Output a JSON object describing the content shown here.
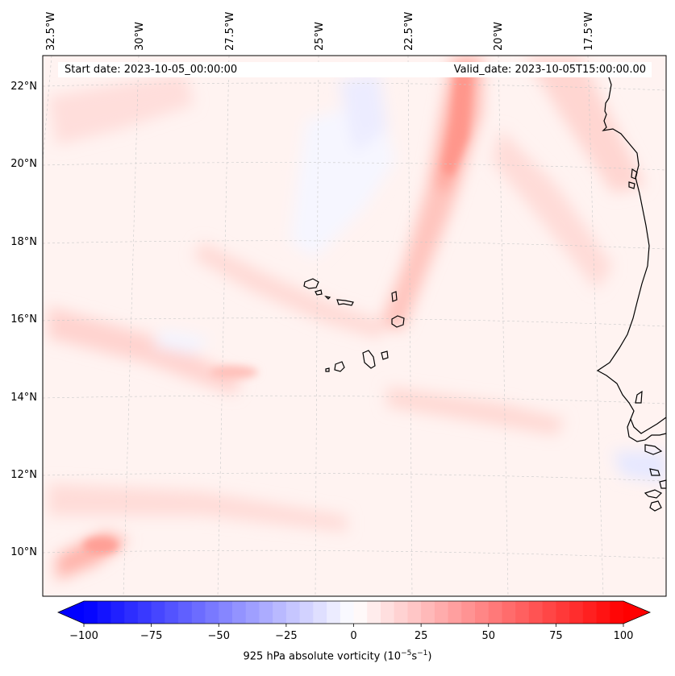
{
  "map": {
    "start_label": "Start date: 2023-10-05_00:00:00",
    "valid_label": "Valid_date: 2023-10-05T15:00:00.00",
    "lon_labels": [
      "32.5°W",
      "30°W",
      "27.5°W",
      "25°W",
      "22.5°W",
      "20°W",
      "17.5°W"
    ],
    "lat_labels": [
      "22°N",
      "20°N",
      "18°N",
      "16°N",
      "14°N",
      "12°N",
      "10°N"
    ],
    "region": "Cape Verde Islands and West African coast"
  },
  "colorbar": {
    "label_text": "925 hPa absolute vorticity (10",
    "label_exp1": "−5",
    "label_mid": "s",
    "label_exp2": "−1",
    "label_end": ")",
    "ticks": [
      "−100",
      "−75",
      "−50",
      "−25",
      "0",
      "25",
      "50",
      "75",
      "100"
    ],
    "range": [
      -100,
      100
    ],
    "colormap": "bwr",
    "colors": {
      "min": "#0000ff",
      "mid": "#ffffff",
      "max": "#ff0000"
    }
  }
}
